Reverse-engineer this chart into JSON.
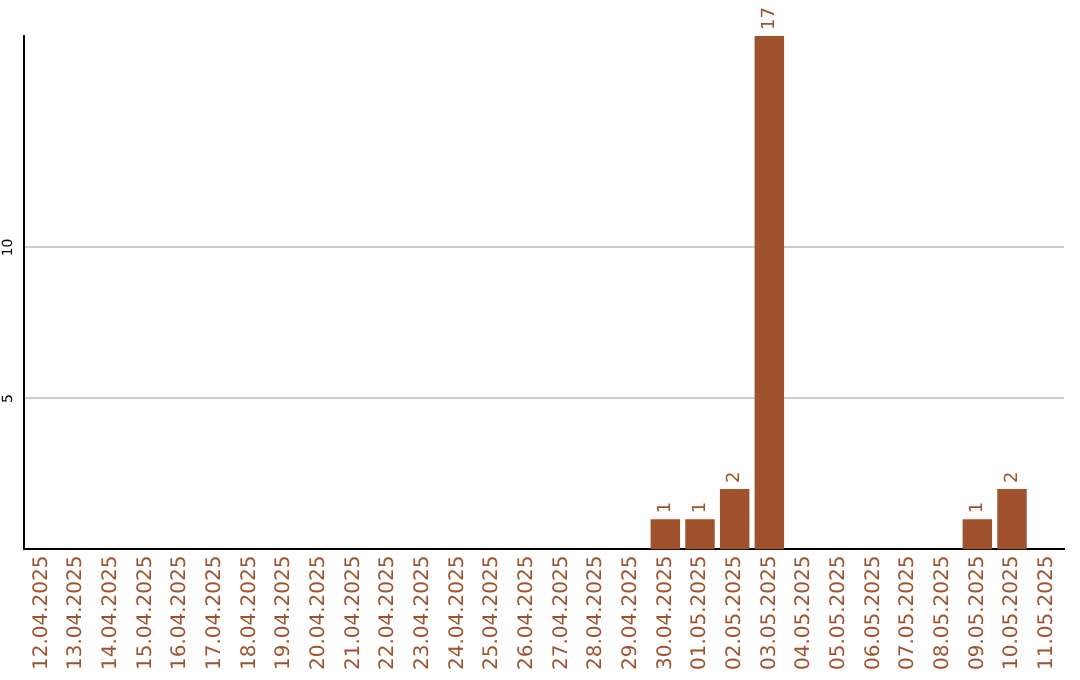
{
  "chart_data": {
    "type": "bar",
    "categories": [
      "12.04.2025",
      "13.04.2025",
      "14.04.2025",
      "15.04.2025",
      "16.04.2025",
      "17.04.2025",
      "18.04.2025",
      "19.04.2025",
      "20.04.2025",
      "21.04.2025",
      "22.04.2025",
      "23.04.2025",
      "24.04.2025",
      "25.04.2025",
      "26.04.2025",
      "27.04.2025",
      "28.04.2025",
      "29.04.2025",
      "30.04.2025",
      "01.05.2025",
      "02.05.2025",
      "03.05.2025",
      "04.05.2025",
      "05.05.2025",
      "06.05.2025",
      "07.05.2025",
      "08.05.2025",
      "09.05.2025",
      "10.05.2025",
      "11.05.2025"
    ],
    "values": [
      0,
      0,
      0,
      0,
      0,
      0,
      0,
      0,
      0,
      0,
      0,
      0,
      0,
      0,
      0,
      0,
      0,
      0,
      1,
      1,
      2,
      17,
      0,
      0,
      0,
      0,
      0,
      1,
      2,
      0
    ],
    "value_labels": [
      null,
      null,
      null,
      null,
      null,
      null,
      null,
      null,
      null,
      null,
      null,
      null,
      null,
      null,
      null,
      null,
      null,
      null,
      "1",
      "1",
      "2",
      "17",
      null,
      null,
      null,
      null,
      null,
      "1",
      "2",
      null
    ],
    "color": "#a0522d",
    "ylim": [
      0,
      17
    ],
    "yticks": [
      5,
      10
    ],
    "grid": "y",
    "legend": false
  }
}
